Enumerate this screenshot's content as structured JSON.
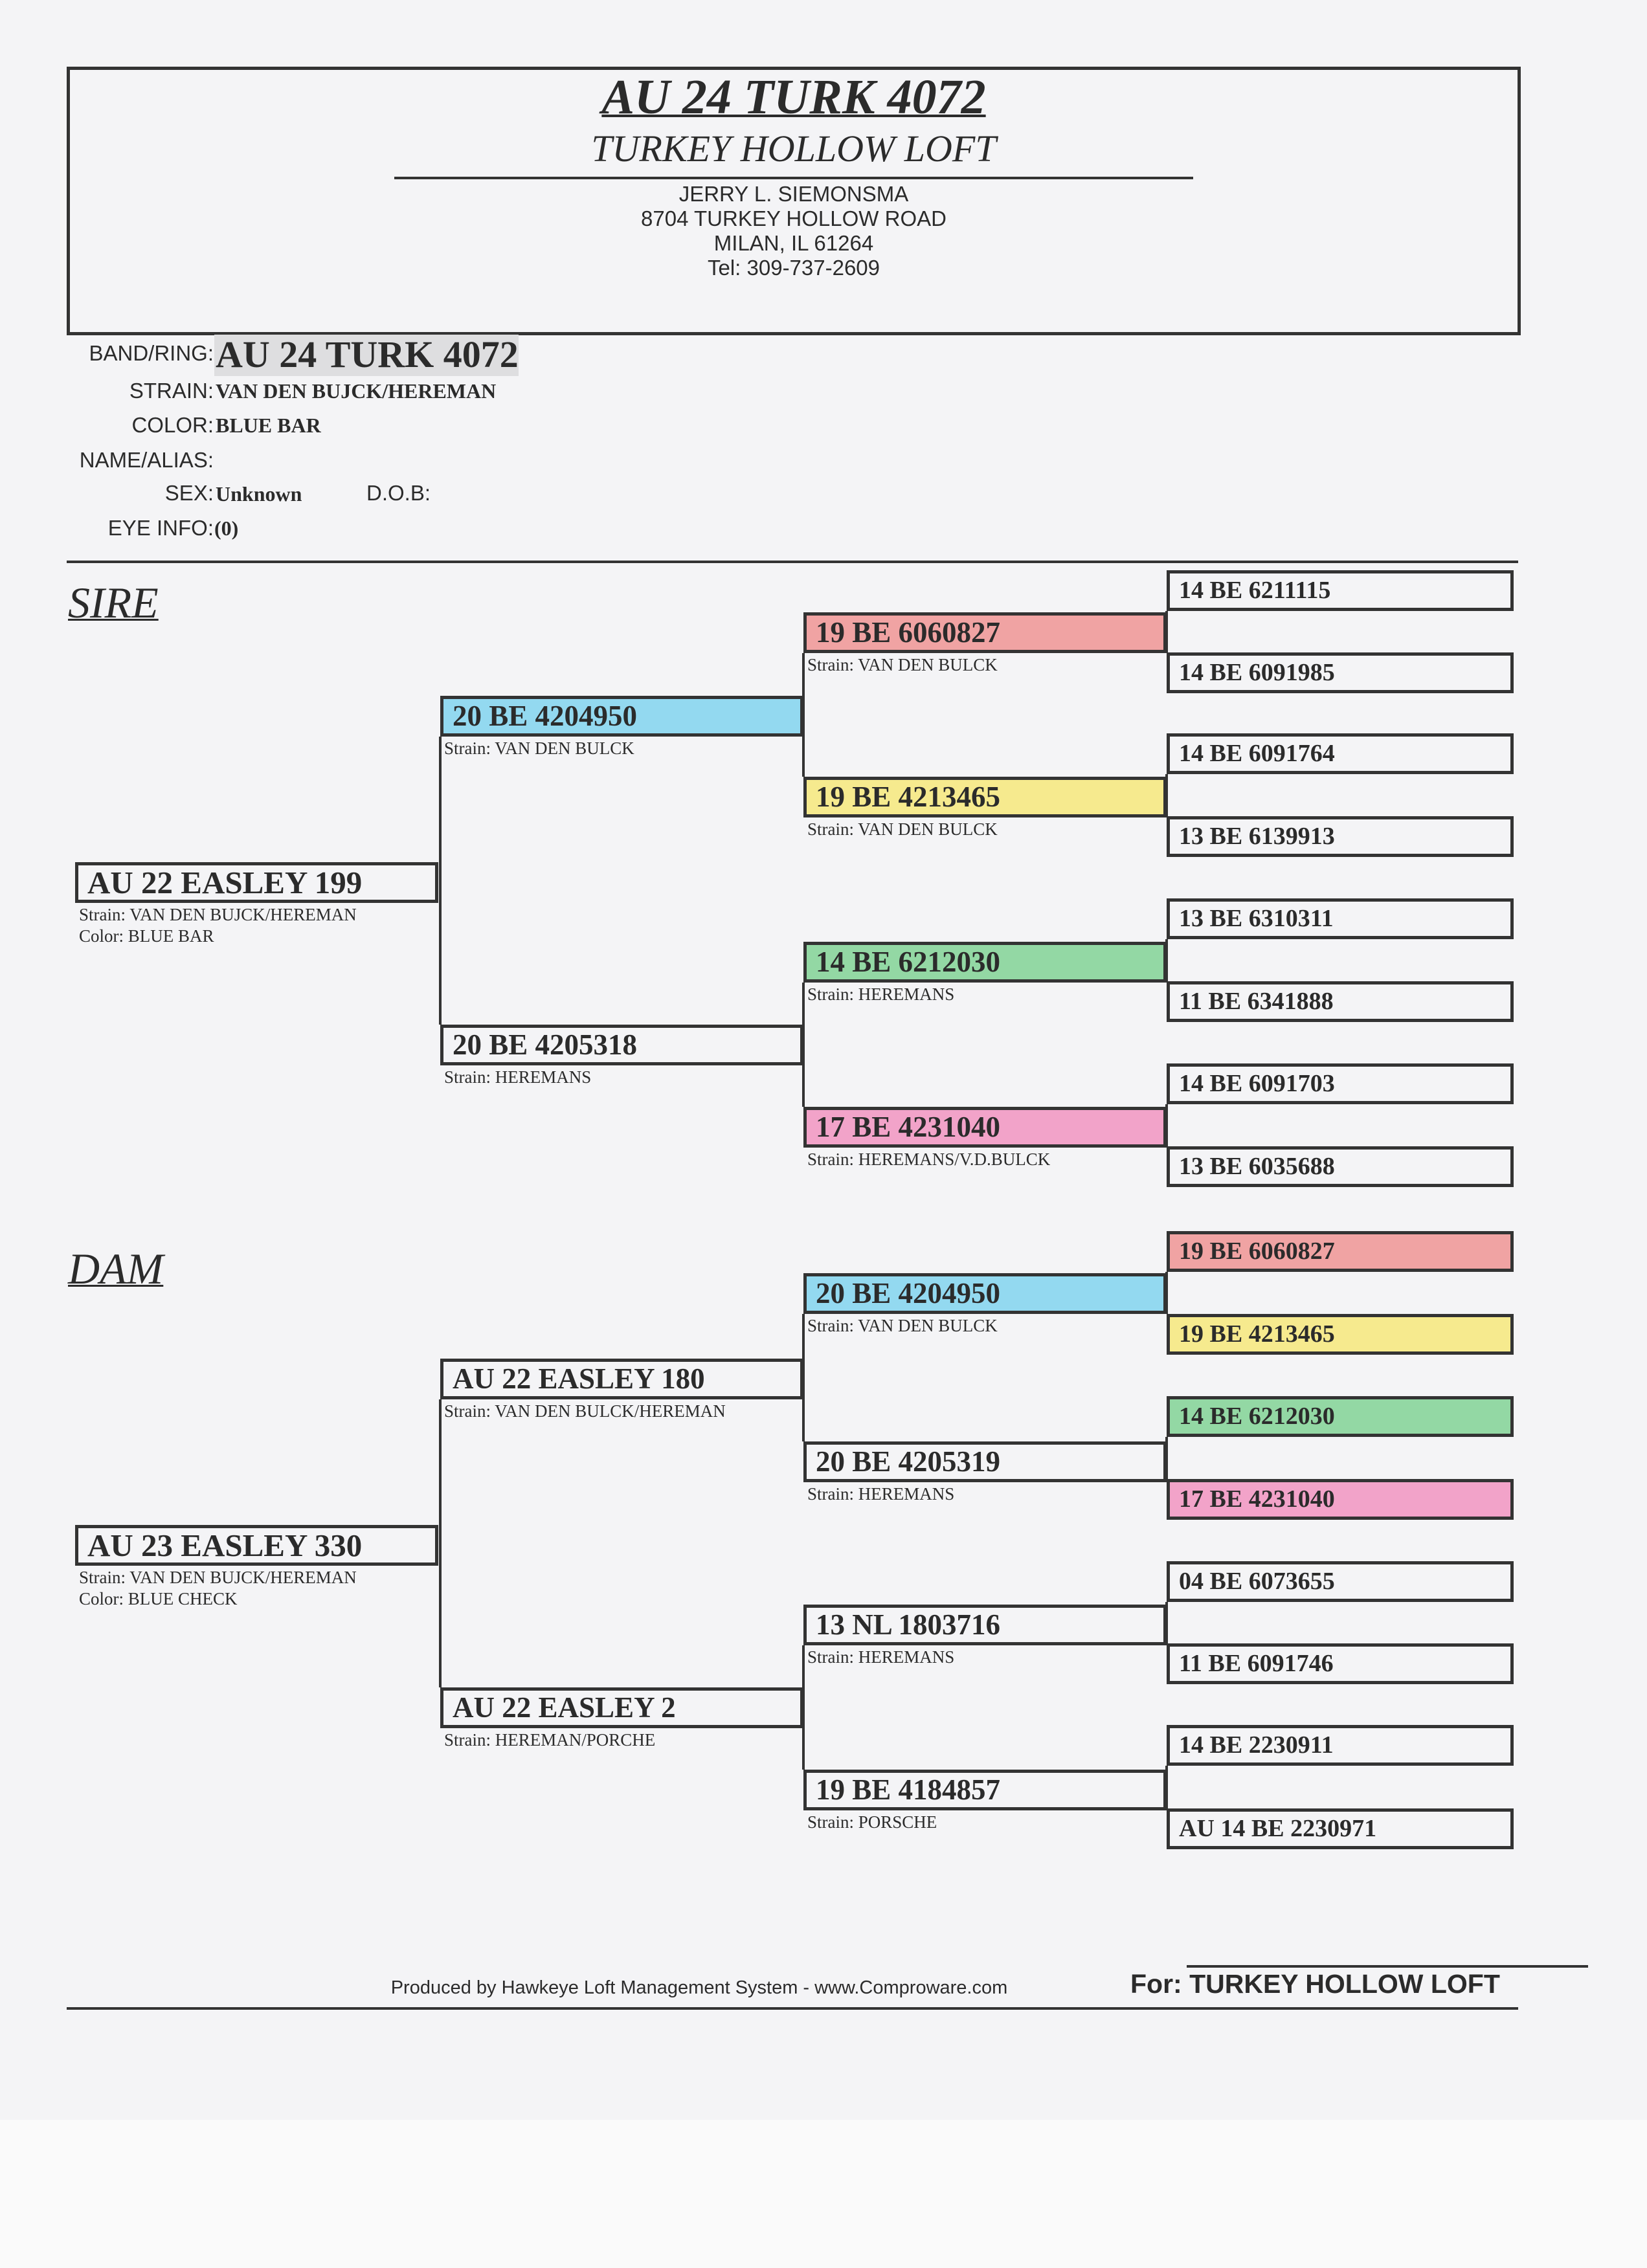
{
  "header": {
    "title": "AU 24 TURK 4072",
    "loft": "TURKEY HOLLOW LOFT",
    "address": [
      "JERRY L. SIEMONSMA",
      "8704 TURKEY HOLLOW ROAD",
      "MILAN, IL 61264",
      "Tel: 309-737-2609"
    ]
  },
  "info": {
    "band_label": "BAND/RING:",
    "band": "AU 24 TURK 4072",
    "strain_label": "STRAIN:",
    "strain": "VAN DEN BUJCK/HEREMAN",
    "color_label": "COLOR:",
    "color": "BLUE BAR",
    "name_label": "NAME/ALIAS:",
    "name": "",
    "sex_label": "SEX:",
    "sex": "Unknown",
    "dob_label": "D.O.B:",
    "dob": "",
    "eye_label": "EYE INFO:",
    "eye": "(0)"
  },
  "highlight_colors": {
    "red": "#f0a3a3",
    "blue": "#93d9f0",
    "yellow": "#f6ea8e",
    "green": "#93d8a4",
    "pink": "#f2a3c9"
  },
  "sire": {
    "label": "SIRE",
    "gen1": {
      "ring": "AU 22 EASLEY 199",
      "strain": "Strain: VAN DEN BUJCK/HEREMAN",
      "color": "Color: BLUE BAR"
    },
    "gen2": [
      {
        "ring": "20 BE 4204950",
        "strain": "Strain: VAN DEN BULCK",
        "highlight": "blue"
      },
      {
        "ring": "20 BE 4205318",
        "strain": "Strain: HEREMANS",
        "highlight": ""
      }
    ],
    "gen3": [
      {
        "ring": "19 BE 6060827",
        "strain": "Strain: VAN DEN BULCK",
        "highlight": "red"
      },
      {
        "ring": "19 BE 4213465",
        "strain": "Strain: VAN DEN BULCK",
        "highlight": "yellow"
      },
      {
        "ring": "14 BE 6212030",
        "strain": "Strain: HEREMANS",
        "highlight": "green"
      },
      {
        "ring": "17 BE 4231040",
        "strain": "Strain: HEREMANS/V.D.BULCK",
        "highlight": "pink"
      }
    ],
    "gen4": [
      {
        "ring": "14 BE 6211115",
        "highlight": ""
      },
      {
        "ring": "14 BE 6091985",
        "highlight": ""
      },
      {
        "ring": "14 BE 6091764",
        "highlight": ""
      },
      {
        "ring": "13 BE 6139913",
        "highlight": ""
      },
      {
        "ring": "13 BE 6310311",
        "highlight": ""
      },
      {
        "ring": "11 BE 6341888",
        "highlight": ""
      },
      {
        "ring": "14 BE 6091703",
        "highlight": ""
      },
      {
        "ring": "13 BE 6035688",
        "highlight": ""
      }
    ]
  },
  "dam": {
    "label": "DAM",
    "gen1": {
      "ring": "AU 23 EASLEY 330",
      "strain": "Strain: VAN DEN BUJCK/HEREMAN",
      "color": "Color: BLUE CHECK"
    },
    "gen2": [
      {
        "ring": "AU 22 EASLEY 180",
        "strain": "Strain: VAN DEN BULCK/HEREMAN",
        "highlight": ""
      },
      {
        "ring": "AU 22 EASLEY 2",
        "strain": "Strain: HEREMAN/PORCHE",
        "highlight": ""
      }
    ],
    "gen3": [
      {
        "ring": "20 BE 4204950",
        "strain": "Strain: VAN DEN BULCK",
        "highlight": "blue"
      },
      {
        "ring": "20 BE 4205319",
        "strain": "Strain: HEREMANS",
        "highlight": ""
      },
      {
        "ring": "13 NL 1803716",
        "strain": "Strain: HEREMANS",
        "highlight": ""
      },
      {
        "ring": "19 BE 4184857",
        "strain": "Strain: PORSCHE",
        "highlight": ""
      }
    ],
    "gen4": [
      {
        "ring": "19 BE 6060827",
        "highlight": "red"
      },
      {
        "ring": "19 BE 4213465",
        "highlight": "yellow"
      },
      {
        "ring": "14 BE 6212030",
        "highlight": "green"
      },
      {
        "ring": "17 BE 4231040",
        "highlight": "pink"
      },
      {
        "ring": "04 BE 6073655",
        "highlight": ""
      },
      {
        "ring": "11 BE 6091746",
        "highlight": ""
      },
      {
        "ring": "14 BE 2230911",
        "highlight": ""
      },
      {
        "ring": "AU 14 BE 2230971",
        "highlight": ""
      }
    ]
  },
  "footer": {
    "produced": "Produced by Hawkeye Loft Management System - www.Comproware.com",
    "for": "For: TURKEY HOLLOW LOFT"
  }
}
